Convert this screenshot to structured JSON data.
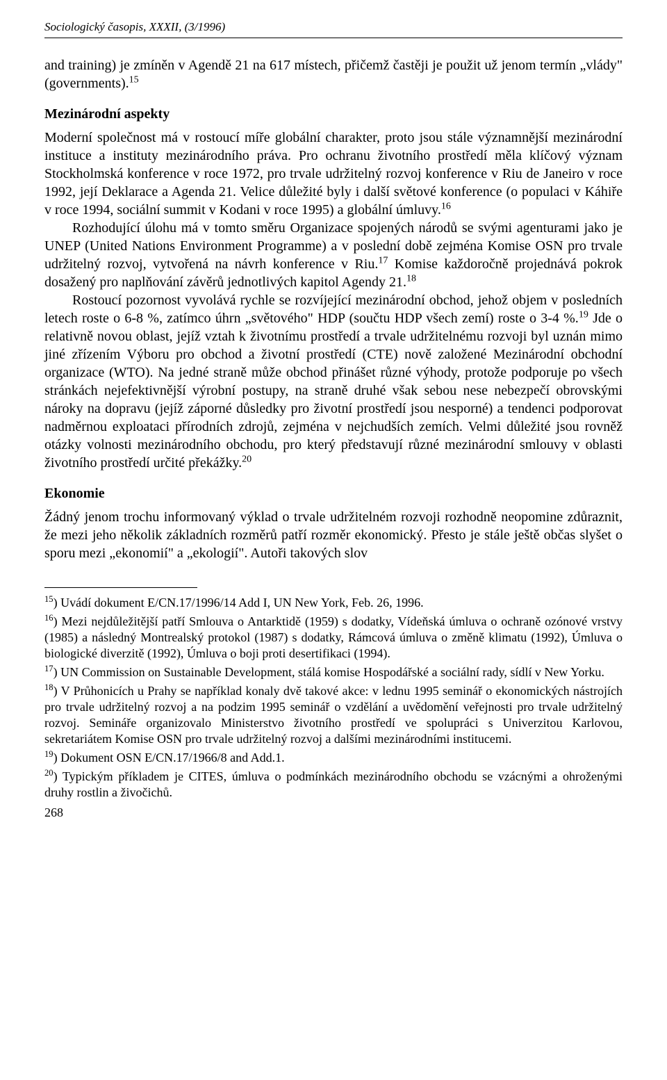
{
  "header": {
    "running": "Sociologický časopis, XXXII, (3/1996)"
  },
  "body": {
    "p1_a": "and training) je zmíněn v Agendě 21 na 617 místech, přičemž častěji je použit už jenom termín „vlády\" (governments).",
    "s15": "15",
    "heading1": "Mezinárodní aspekty",
    "p2_a": "Moderní společnost má v rostoucí míře globální charakter, proto jsou stále významnější mezinárodní instituce a instituty mezinárodního práva. Pro ochranu životního prostředí měla klíčový význam Stockholmská konference v roce 1972, pro trvale udržitelný rozvoj konference v Riu de Janeiro v roce 1992, její Deklarace a Agenda 21. Velice důležité byly i další světové konference (o populaci v Káhiře v roce 1994, sociální summit v Kodani v roce 1995) a globální úmluvy.",
    "s16": "16",
    "p3_a": "Rozhodující úlohu má v tomto směru Organizace spojených národů se svými agenturami jako je UNEP (United Nations Environment Programme) a v poslední době zejména Komise OSN pro trvale udržitelný rozvoj, vytvořená na návrh konference v Riu.",
    "s17": "17",
    "p3_b": " Komise každoročně projednává pokrok dosažený pro naplňování závěrů jednotlivých kapitol Agendy 21.",
    "s18": "18",
    "p4_a": "Rostoucí pozornost vyvolává rychle se rozvíjející mezinárodní obchod, jehož objem v posledních letech roste o 6-8 %, zatímco úhrn „světového\" HDP (součtu HDP všech zemí) roste o 3-4 %.",
    "s19": "19",
    "p4_b": " Jde o relativně novou oblast, jejíž vztah k životnímu prostředí a trvale udržitelnému rozvoji byl uznán mimo jiné zřízením Výboru pro obchod a životní prostředí (CTE) nově založené Mezinárodní obchodní organizace (WTO). Na jedné straně může obchod přinášet různé výhody, protože podporuje po všech stránkách nejefektivnější výrobní postupy, na straně druhé však sebou nese nebezpečí obrovskými nároky na dopravu (jejíž záporné důsledky pro životní prostředí jsou nesporné) a tendenci podporovat nadměrnou exploataci přírodních zdrojů, zejména v nejchudších zemích. Velmi důležité jsou rovněž otázky volnosti mezinárodního obchodu, pro který představují různé mezinárodní smlouvy v oblasti životního prostředí určité překážky.",
    "s20": "20",
    "heading2": "Ekonomie",
    "p5_a": "Žádný jenom trochu informovaný výklad o trvale udržitelném rozvoji rozhodně neopomine zdůraznit, že mezi jeho několik základních rozměrů patří rozměr ekonomický. Přesto je stále ještě občas slyšet o sporu mezi „ekonomií\" a „ekologií\". Autoři takových slov"
  },
  "footnotes": {
    "n15_a": "15",
    "n15_b": ") Uvádí dokument E/CN.17/1996/14 Add I, UN New York, Feb. 26, 1996.",
    "n16_a": "16",
    "n16_b": ") Mezi nejdůležitější patří Smlouva o Antarktidě (1959) s dodatky, Vídeňská úmluva o ochraně ozónové vrstvy (1985) a následný Montrealský protokol (1987) s dodatky, Rámcová úmluva o změně klimatu (1992), Úmluva o biologické diverzitě (1992), Úmluva o boji proti desertifikaci (1994).",
    "n17_a": "17",
    "n17_b": ") UN Commission on Sustainable Development, stálá komise Hospodářské a sociální rady, sídlí v New Yorku.",
    "n18_a": "18",
    "n18_b": ") V Průhonicích u Prahy se například konaly dvě takové akce: v lednu 1995 seminář o ekonomických nástrojích pro trvale udržitelný rozvoj a na podzim 1995 seminář o vzdělání a uvědomění veřejnosti pro trvale udržitelný rozvoj. Semináře organizovalo Ministerstvo životního prostředí ve spolupráci s Univerzitou Karlovou, sekretariátem Komise OSN pro trvale udržitelný rozvoj a dalšími mezinárodními institucemi.",
    "n19_a": "19",
    "n19_b": ") Dokument OSN E/CN.17/1966/8 and Add.1.",
    "n20_a": "20",
    "n20_b": ") Typickým příkladem je CITES, úmluva o podmínkách mezinárodního obchodu se vzácnými a ohroženými druhy rostlin a živočichů."
  },
  "pagenum": "268"
}
